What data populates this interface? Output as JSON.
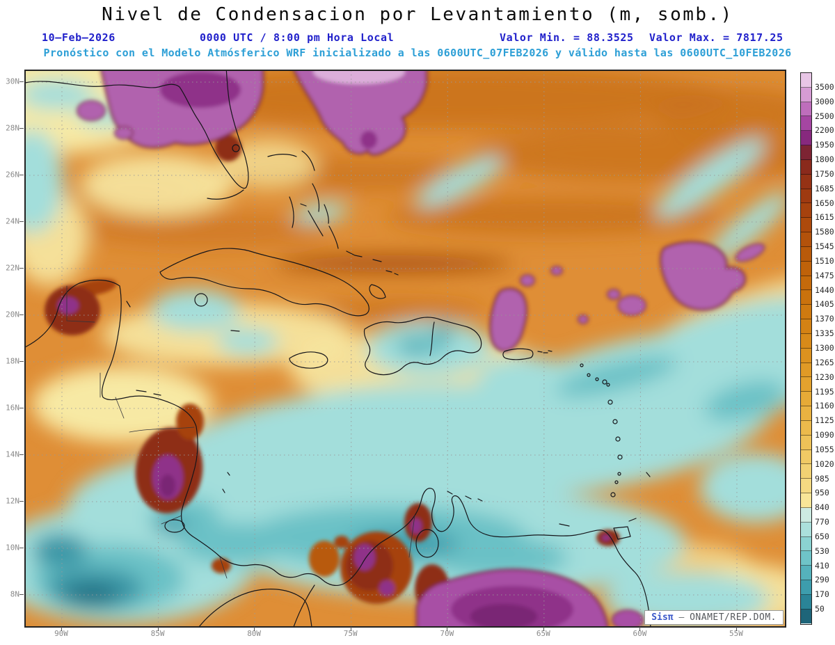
{
  "title": "Nivel de Condensacion por Levantamiento (m, somb.)",
  "header": {
    "date": "10–Feb–2026",
    "time": "0000 UTC / 8:00 pm Hora Local",
    "min": "Valor Min. = 88.3525",
    "max": "Valor Max. = 7817.25",
    "forecast": "Pronóstico con el Modelo Atmósferico WRF inicializado a las 0600UTC_07FEB2026 y válido hasta las  0600UTC_10FEB2026"
  },
  "axes": {
    "lat": [
      "30N",
      "28N",
      "26N",
      "24N",
      "22N",
      "20N",
      "18N",
      "16N",
      "14N",
      "12N",
      "10N",
      "8N"
    ],
    "lon": [
      "90W",
      "85W",
      "80W",
      "75W",
      "70W",
      "65W",
      "60W",
      "55W"
    ]
  },
  "colorbar": {
    "labels": [
      "3500",
      "3000",
      "2500",
      "2200",
      "1950",
      "1800",
      "1750",
      "1685",
      "1650",
      "1615",
      "1580",
      "1545",
      "1510",
      "1475",
      "1440",
      "1405",
      "1370",
      "1335",
      "1300",
      "1265",
      "1230",
      "1195",
      "1160",
      "1125",
      "1090",
      "1055",
      "1020",
      "985",
      "950",
      "840",
      "770",
      "650",
      "530",
      "410",
      "290",
      "170",
      "50"
    ],
    "colors": [
      "#E8C6E6",
      "#D69CD4",
      "#BE6EBC",
      "#A546A2",
      "#87297E",
      "#7D2433",
      "#8A2A1C",
      "#953215",
      "#9E3A11",
      "#A6420E",
      "#AD4A0C",
      "#B3520B",
      "#B95A0A",
      "#BF620A",
      "#C56A0B",
      "#CA720D",
      "#CF7A10",
      "#D48214",
      "#D88A19",
      "#DC921F",
      "#E09A26",
      "#E3A22E",
      "#E6AA37",
      "#E9B241",
      "#ECBA4C",
      "#EEC258",
      "#F0CA65",
      "#F2D273",
      "#F5DA82",
      "#F8E698",
      "#CDEBE2",
      "#ABE0DC",
      "#8BD3D2",
      "#6FC4C8",
      "#55B2BC",
      "#3D9DAD",
      "#2A8497",
      "#1E6579"
    ]
  },
  "watermark": {
    "brand": "Sisπ",
    "separator": "–",
    "org": "ONAMET/REP.DOM."
  },
  "colors": {
    "header_blue": "#2121CB",
    "forecast_blue": "#2D9FD6",
    "base_orange": "#DF8E36",
    "pale_yellow": "#F7E9A4",
    "cyan": "#A3DEDB",
    "purple": "#B162AE"
  }
}
